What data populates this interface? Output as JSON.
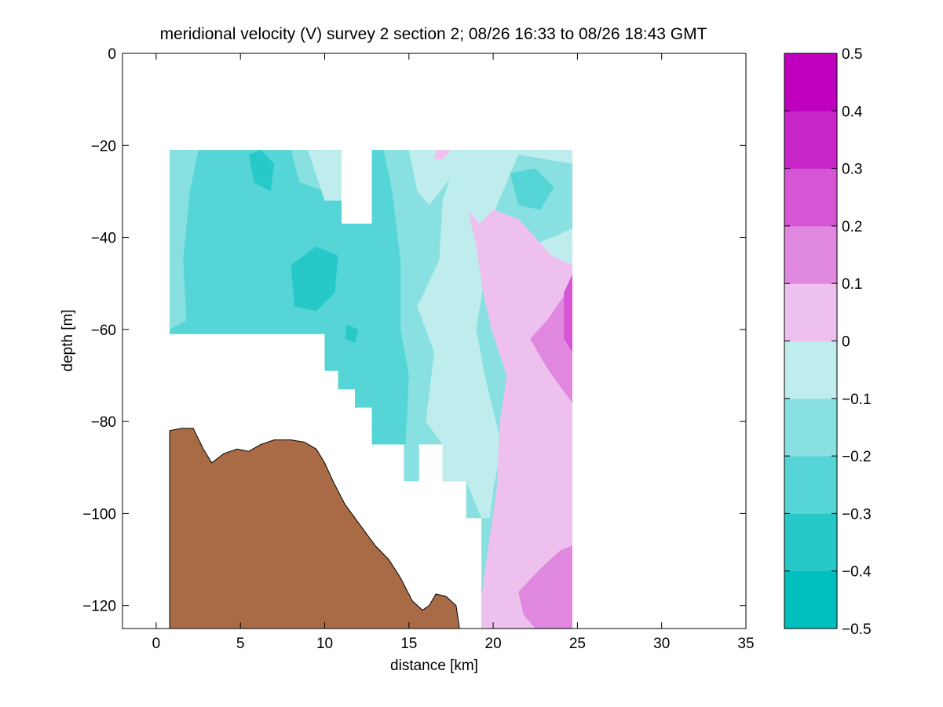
{
  "chart_data": {
    "type": "contour",
    "title": "meridional velocity (V) survey 2 section 2; 08/26 16:33 to 08/26 18:43 GMT",
    "xlabel": "distance [km]",
    "ylabel": "depth [m]",
    "xlim": [
      -2,
      35
    ],
    "ylim": [
      -125,
      0
    ],
    "xticks": [
      0,
      5,
      10,
      15,
      20,
      25,
      30,
      35
    ],
    "yticks": [
      0,
      -20,
      -40,
      -60,
      -80,
      -100,
      -120
    ],
    "colorbar": {
      "levels": [
        -0.5,
        -0.4,
        -0.3,
        -0.2,
        -0.1,
        0,
        0.1,
        0.2,
        0.3,
        0.4,
        0.5
      ],
      "tick_labels": [
        "−0.5",
        "−0.4",
        "−0.3",
        "−0.2",
        "−0.1",
        "0",
        "0.1",
        "0.2",
        "0.3",
        "0.4",
        "0.5"
      ],
      "colors": [
        "#00bfbf",
        "#26c8c8",
        "#55d5d5",
        "#88e0e0",
        "#bfeded",
        "#eec0ee",
        "#e088e0",
        "#d555d5",
        "#c826c8",
        "#bf00bf"
      ]
    },
    "bathymetry": {
      "color": "#a86b45",
      "points": [
        [
          0.8,
          -82
        ],
        [
          1.5,
          -81.5
        ],
        [
          2.2,
          -81.5
        ],
        [
          2.8,
          -86
        ],
        [
          3.3,
          -89
        ],
        [
          4.0,
          -87
        ],
        [
          4.8,
          -86
        ],
        [
          5.5,
          -86.5
        ],
        [
          6.2,
          -85
        ],
        [
          7.0,
          -84
        ],
        [
          8.0,
          -84
        ],
        [
          8.8,
          -84.5
        ],
        [
          9.5,
          -86
        ],
        [
          10.0,
          -89
        ],
        [
          10.5,
          -93
        ],
        [
          11.2,
          -98
        ],
        [
          12.0,
          -102
        ],
        [
          13.0,
          -107
        ],
        [
          13.8,
          -110
        ],
        [
          14.5,
          -114
        ],
        [
          15.2,
          -119
        ],
        [
          15.8,
          -121
        ],
        [
          16.2,
          -120
        ],
        [
          16.6,
          -117.5
        ],
        [
          17.2,
          -118
        ],
        [
          17.8,
          -120
        ],
        [
          18.0,
          -125
        ]
      ]
    },
    "data_patches": [
      {
        "level": -0.2,
        "points": [
          [
            0.8,
            -21
          ],
          [
            11,
            -21
          ],
          [
            11,
            -37
          ],
          [
            12.8,
            -37
          ],
          [
            12.8,
            -21
          ],
          [
            24.7,
            -21
          ],
          [
            24.7,
            -125
          ],
          [
            19.3,
            -125
          ],
          [
            19.3,
            -101
          ],
          [
            18.4,
            -101
          ],
          [
            18.4,
            -93
          ],
          [
            17,
            -93
          ],
          [
            17,
            -85
          ],
          [
            15.6,
            -85
          ],
          [
            15.6,
            -93
          ],
          [
            14.7,
            -93
          ],
          [
            14.7,
            -85
          ],
          [
            12.8,
            -85
          ],
          [
            12.8,
            -77
          ],
          [
            11.8,
            -77
          ],
          [
            11.8,
            -73
          ],
          [
            10.8,
            -73
          ],
          [
            10.8,
            -69
          ],
          [
            10,
            -69
          ],
          [
            10,
            -61
          ],
          [
            0.8,
            -61
          ]
        ]
      },
      {
        "level": -0.3,
        "points": [
          [
            0.8,
            -21
          ],
          [
            11,
            -21
          ],
          [
            11,
            -37
          ],
          [
            12.8,
            -37
          ],
          [
            12.8,
            -21
          ],
          [
            13.5,
            -21
          ],
          [
            14,
            -30
          ],
          [
            14.5,
            -45
          ],
          [
            14.5,
            -60
          ],
          [
            15,
            -70
          ],
          [
            14.8,
            -85
          ],
          [
            12.8,
            -85
          ],
          [
            12.8,
            -77
          ],
          [
            11.8,
            -77
          ],
          [
            11.8,
            -73
          ],
          [
            10.8,
            -73
          ],
          [
            10.8,
            -69
          ],
          [
            10,
            -69
          ],
          [
            10,
            -61
          ],
          [
            0.8,
            -61
          ]
        ]
      },
      {
        "level": -0.4,
        "points": [
          [
            8,
            -46
          ],
          [
            9.5,
            -42
          ],
          [
            10.8,
            -44
          ],
          [
            10.6,
            -52
          ],
          [
            9.5,
            -56
          ],
          [
            8.2,
            -55
          ]
        ]
      },
      {
        "level": -0.4,
        "points": [
          [
            11.3,
            -59
          ],
          [
            12,
            -60
          ],
          [
            11.8,
            -63
          ],
          [
            11.2,
            -62
          ]
        ]
      },
      {
        "level": -0.4,
        "points": [
          [
            5.5,
            -22
          ],
          [
            6.2,
            -21
          ],
          [
            7,
            -24
          ],
          [
            6.8,
            -30
          ],
          [
            5.8,
            -28
          ]
        ]
      },
      {
        "level": -0.3,
        "points": [
          [
            21,
            -26
          ],
          [
            22.5,
            -25
          ],
          [
            23.6,
            -29
          ],
          [
            22.8,
            -34
          ],
          [
            21.5,
            -33
          ]
        ]
      },
      {
        "level": -0.2,
        "points": [
          [
            0.8,
            -21
          ],
          [
            2.5,
            -21
          ],
          [
            2,
            -30
          ],
          [
            1.6,
            -45
          ],
          [
            1.8,
            -58
          ],
          [
            0.8,
            -60
          ]
        ]
      },
      {
        "level": -0.2,
        "points": [
          [
            8,
            -21
          ],
          [
            10.5,
            -21
          ],
          [
            10,
            -30
          ],
          [
            8.5,
            -28
          ]
        ]
      },
      {
        "level": -0.1,
        "points": [
          [
            9,
            -21
          ],
          [
            11,
            -21
          ],
          [
            11,
            -32
          ],
          [
            10,
            -32
          ]
        ]
      },
      {
        "level": -0.1,
        "points": [
          [
            15,
            -21
          ],
          [
            18,
            -21
          ],
          [
            17.5,
            -27
          ],
          [
            16.2,
            -33
          ],
          [
            15.5,
            -30
          ]
        ]
      },
      {
        "level": -0.1,
        "points": [
          [
            18,
            -21
          ],
          [
            24.7,
            -21
          ],
          [
            24.7,
            -24
          ],
          [
            21.5,
            -22
          ],
          [
            20,
            -35
          ],
          [
            19.5,
            -48
          ],
          [
            19,
            -60
          ],
          [
            19.5,
            -70
          ],
          [
            20.5,
            -85
          ],
          [
            20,
            -95
          ],
          [
            19.8,
            -101
          ],
          [
            19.3,
            -101
          ],
          [
            18.4,
            -93
          ],
          [
            17,
            -93
          ],
          [
            17,
            -85
          ],
          [
            16,
            -80
          ],
          [
            16.5,
            -65
          ],
          [
            15.5,
            -55
          ],
          [
            16.8,
            -45
          ],
          [
            17,
            -32
          ]
        ]
      },
      {
        "level": -0.1,
        "points": [
          [
            22,
            -42
          ],
          [
            23.5,
            -40
          ],
          [
            24.7,
            -38
          ],
          [
            24.7,
            -46
          ],
          [
            23,
            -47
          ]
        ]
      },
      {
        "level": 0.0,
        "points": [
          [
            18.5,
            -34
          ],
          [
            19.2,
            -37
          ],
          [
            20,
            -34
          ],
          [
            21.5,
            -36
          ],
          [
            23.5,
            -44
          ],
          [
            24.7,
            -46
          ],
          [
            24.7,
            -125
          ],
          [
            19.3,
            -125
          ],
          [
            19.3,
            -118
          ],
          [
            19.8,
            -105
          ],
          [
            20.2,
            -95
          ],
          [
            20.4,
            -80
          ],
          [
            20.8,
            -70
          ],
          [
            19.9,
            -60
          ],
          [
            19.4,
            -52
          ],
          [
            19.0,
            -42
          ]
        ]
      },
      {
        "level": 0.0,
        "points": [
          [
            16.6,
            -21
          ],
          [
            17.5,
            -21
          ],
          [
            17,
            -23
          ],
          [
            16.5,
            -23
          ]
        ]
      },
      {
        "level": 0.1,
        "points": [
          [
            23.2,
            -58
          ],
          [
            24.7,
            -50
          ],
          [
            24.7,
            -76
          ],
          [
            23.5,
            -70
          ],
          [
            22.8,
            -66
          ],
          [
            22.2,
            -62
          ]
        ]
      },
      {
        "level": 0.1,
        "points": [
          [
            21.5,
            -117
          ],
          [
            22.8,
            -112
          ],
          [
            24,
            -108
          ],
          [
            24.7,
            -107
          ],
          [
            24.7,
            -125
          ],
          [
            22.5,
            -125
          ],
          [
            21.8,
            -122
          ]
        ]
      },
      {
        "level": 0.2,
        "points": [
          [
            24.2,
            -52
          ],
          [
            24.7,
            -48
          ],
          [
            24.7,
            -65
          ],
          [
            24.2,
            -62
          ]
        ]
      }
    ]
  }
}
